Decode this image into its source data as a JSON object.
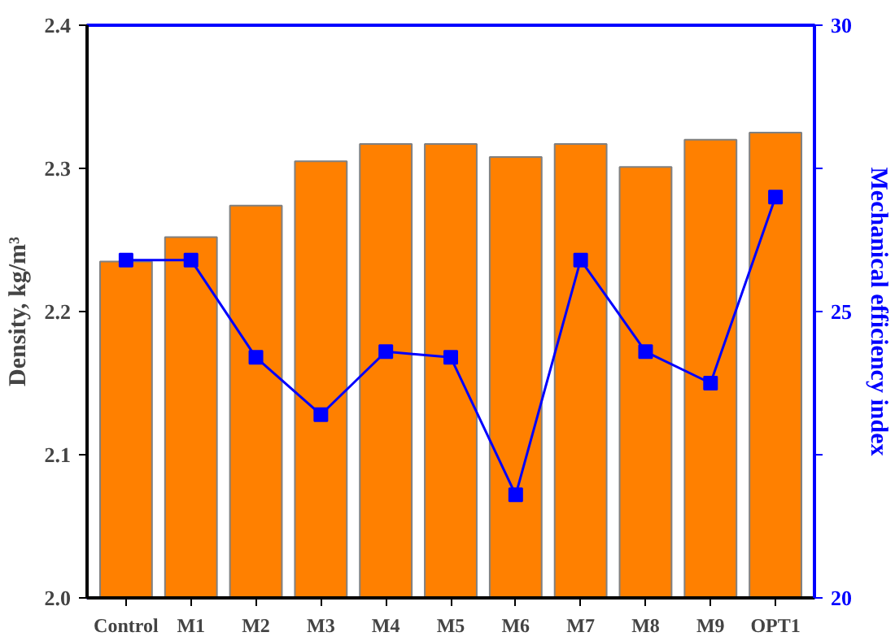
{
  "chart_data": {
    "type": "bar",
    "categories": [
      "Control",
      "M1",
      "M2",
      "M3",
      "M4",
      "M5",
      "M6",
      "M7",
      "M8",
      "M9",
      "OPT1"
    ],
    "ylabel": "Density, kg/m³",
    "y2label": "Mechanical efficiency index",
    "series": [
      {
        "color": "#ff8000",
        "values": [
          2.235,
          2.252,
          2.274,
          2.305,
          2.317,
          2.317,
          2.308,
          2.317,
          2.301,
          2.32,
          2.325
        ]
      },
      {
        "type": "line",
        "axis": "y2",
        "color": "#0000ff",
        "values": [
          25.9,
          25.9,
          24.2,
          23.2,
          24.3,
          24.2,
          21.8,
          25.9,
          24.3,
          23.75,
          27.0
        ]
      }
    ],
    "ylim": [
      2.0,
      2.4
    ],
    "yticks": [
      {
        "value": 2.0,
        "label": "2.0"
      },
      2.1,
      2.2,
      2.3,
      2.4
    ],
    "y2lim": [
      20,
      30
    ],
    "y2ticks": [
      20,
      {
        "value": 22.5,
        "label": null
      },
      25,
      {
        "value": 27.5,
        "label": null
      },
      30
    ],
    "marker": "square",
    "line_style": "solid"
  }
}
